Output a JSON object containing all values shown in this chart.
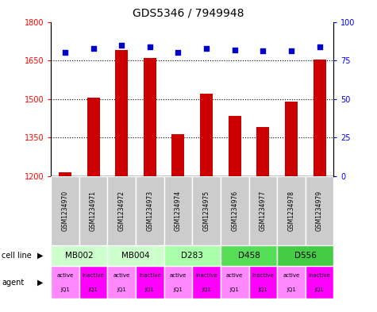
{
  "title": "GDS5346 / 7949948",
  "samples": [
    "GSM1234970",
    "GSM1234971",
    "GSM1234972",
    "GSM1234973",
    "GSM1234974",
    "GSM1234975",
    "GSM1234976",
    "GSM1234977",
    "GSM1234978",
    "GSM1234979"
  ],
  "counts": [
    1215,
    1505,
    1690,
    1660,
    1365,
    1520,
    1435,
    1390,
    1490,
    1655
  ],
  "percentiles": [
    80,
    83,
    85,
    84,
    80,
    83,
    82,
    81,
    81,
    84
  ],
  "ylim_left": [
    1200,
    1800
  ],
  "ylim_right": [
    0,
    100
  ],
  "yticks_left": [
    1200,
    1350,
    1500,
    1650,
    1800
  ],
  "yticks_right": [
    0,
    25,
    50,
    75,
    100
  ],
  "bar_color": "#cc0000",
  "dot_color": "#0000cc",
  "cell_lines": [
    {
      "label": "MB002",
      "cols": [
        0,
        1
      ],
      "color": "#ccffcc"
    },
    {
      "label": "MB004",
      "cols": [
        2,
        3
      ],
      "color": "#ccffcc"
    },
    {
      "label": "D283",
      "cols": [
        4,
        5
      ],
      "color": "#aaffaa"
    },
    {
      "label": "D458",
      "cols": [
        6,
        7
      ],
      "color": "#55dd55"
    },
    {
      "label": "D556",
      "cols": [
        8,
        9
      ],
      "color": "#44cc44"
    }
  ],
  "agents": [
    "active",
    "inactive",
    "active",
    "inactive",
    "active",
    "inactive",
    "active",
    "inactive",
    "active",
    "inactive"
  ],
  "agent_labels2": [
    "JQ1",
    "JQ1",
    "JQ1",
    "JQ1",
    "JQ1",
    "JQ1",
    "JQ1",
    "JQ1",
    "JQ1",
    "JQ1"
  ],
  "active_color": "#ff88ff",
  "inactive_color": "#ff00ff",
  "grid_color": "#000000",
  "bg_color": "#ffffff",
  "sample_box_color": "#cccccc",
  "bar_bottom": 1200
}
